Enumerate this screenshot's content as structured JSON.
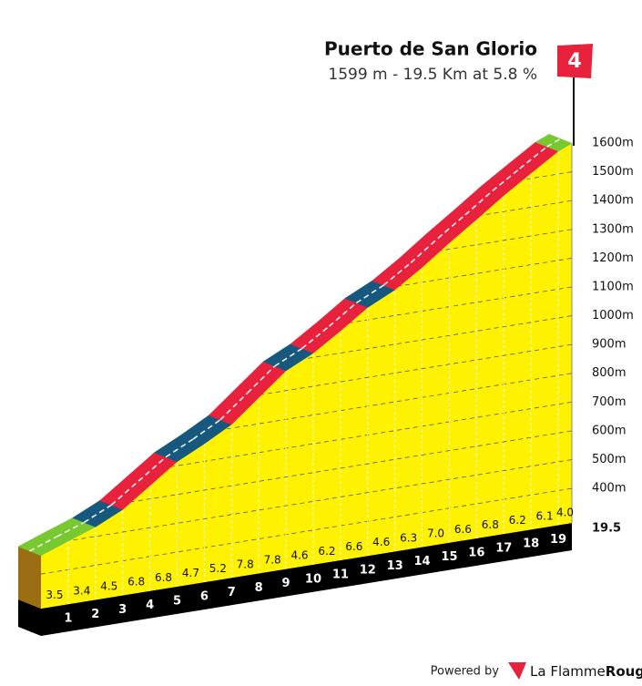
{
  "chart_data": {
    "type": "profile",
    "title": "Puerto de San Glorio",
    "subtitle": "1599 m - 19.5 Km at 5.8 %",
    "category_badge": "4",
    "start_elevation": 464,
    "distance": 19.5,
    "km_marks": [
      1,
      2,
      3,
      4,
      5,
      6,
      7,
      8,
      9,
      10,
      11,
      12,
      13,
      14,
      15,
      16,
      17,
      18,
      19
    ],
    "values": [
      3.5,
      3.4,
      4.5,
      6.8,
      6.8,
      4.7,
      5.2,
      7.8,
      7.8,
      4.6,
      6.2,
      6.6,
      4.6,
      6.3,
      7.0,
      6.6,
      6.8,
      6.2,
      6.1,
      4.0
    ],
    "value_labels": [
      "3.5",
      "3.4",
      "4.5",
      "6.8",
      "6.8",
      "4.7",
      "5.2",
      "7.8",
      "7.8",
      "4.6",
      "6.2",
      "6.6",
      "4.6",
      "6.3",
      "7.0",
      "6.6",
      "6.8",
      "6.2",
      "6.1",
      "4.0"
    ],
    "colors": [
      "#78c832",
      "#78c832",
      "#17587f",
      "#e8213c",
      "#e8213c",
      "#17587f",
      "#17587f",
      "#e8213c",
      "#e8213c",
      "#17587f",
      "#e8213c",
      "#e8213c",
      "#17587f",
      "#e8213c",
      "#e8213c",
      "#e8213c",
      "#e8213c",
      "#e8213c",
      "#e8213c",
      "#78c832"
    ],
    "face_color": "#fff200",
    "ylim": [
      280,
      1600
    ],
    "yticks": [
      {
        "value": 400,
        "label": "400m"
      },
      {
        "value": 500,
        "label": "500m"
      },
      {
        "value": 600,
        "label": "600m"
      },
      {
        "value": 700,
        "label": "700m"
      },
      {
        "value": 800,
        "label": "800m"
      },
      {
        "value": 900,
        "label": "900m"
      },
      {
        "value": 1000,
        "label": "1000m"
      },
      {
        "value": 1100,
        "label": "1100m"
      },
      {
        "value": 1200,
        "label": "1200m"
      },
      {
        "value": 1300,
        "label": "1300m"
      },
      {
        "value": 1400,
        "label": "1400m"
      },
      {
        "value": 1500,
        "label": "1500m"
      },
      {
        "value": 1600,
        "label": "1600m"
      }
    ],
    "grid": true
  },
  "footer": {
    "powered_by": "Powered by",
    "brand_a": "La Flamme",
    "brand_b": "Rouge"
  }
}
